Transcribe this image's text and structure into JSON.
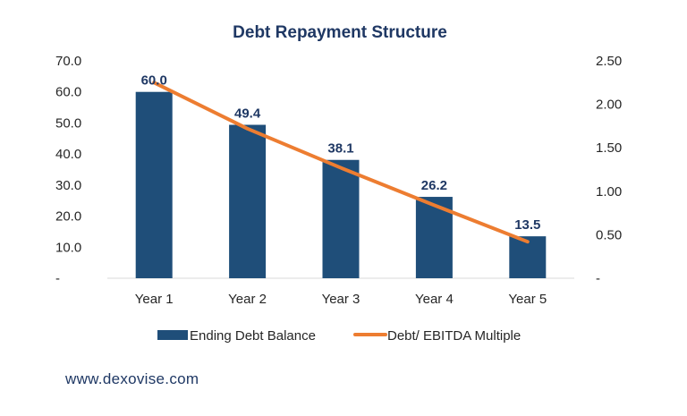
{
  "chart_data": {
    "type": "bar",
    "title": "Debt Repayment Structure",
    "categories": [
      "Year 1",
      "Year 2",
      "Year 3",
      "Year 4",
      "Year 5"
    ],
    "series": [
      {
        "name": "Ending Debt Balance",
        "type": "bar",
        "axis": "left",
        "values": [
          60.0,
          49.4,
          38.1,
          26.2,
          13.5
        ],
        "labels": [
          "60.0",
          "49.4",
          "38.1",
          "26.2",
          "13.5"
        ]
      },
      {
        "name": "Debt/ EBITDA Multiple",
        "type": "line",
        "axis": "right",
        "values": [
          2.25,
          1.72,
          1.27,
          0.84,
          0.42
        ]
      }
    ],
    "yaxis_left": {
      "range": [
        0,
        70
      ],
      "ticks": [
        "-",
        "10.0",
        "20.0",
        "30.0",
        "40.0",
        "50.0",
        "60.0",
        "70.0"
      ]
    },
    "yaxis_right": {
      "range": [
        0,
        2.5
      ],
      "ticks": [
        "-",
        "0.50",
        "1.00",
        "1.50",
        "2.00",
        "2.50"
      ]
    },
    "grid": false,
    "legend": "bottom",
    "colors": {
      "bar": "#1f4e79",
      "line": "#ed7d31",
      "title": "#1f3864",
      "label": "#1f3864"
    }
  },
  "footer": {
    "text": "www.dexovise.com"
  }
}
